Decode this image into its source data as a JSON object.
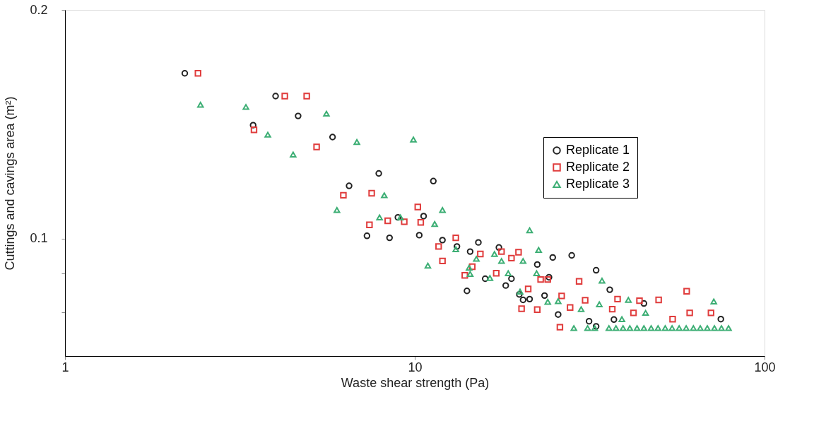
{
  "chart_data": {
    "type": "scatter",
    "xlabel": "Waste shear strength (Pa)",
    "ylabel": "Cuttings and cavings area (m²)",
    "log": "xy",
    "xlim": [
      1,
      100
    ],
    "xticks": [
      1,
      10,
      100
    ],
    "ylim": [
      0.07,
      0.2
    ],
    "yticks": [
      {
        "value": 0.08,
        "label": null
      },
      {
        "value": 0.09,
        "label": null
      },
      0.1,
      0.2
    ],
    "grid": false,
    "legend": "top right",
    "series": [
      {
        "name": "Replicate 1",
        "color": "#222222",
        "marker": "circle",
        "x": [
          2.2,
          4.0,
          3.45,
          4.64,
          5.82,
          7.89,
          6.49,
          11.3,
          7.3,
          8.47,
          8.95,
          10.6,
          10.3,
          12.0,
          13.2,
          14.4,
          15.2,
          14.1,
          17.4,
          15.9,
          18.2,
          18.9,
          19.9,
          21.3,
          20.4,
          22.4,
          24.8,
          28.1,
          24.2,
          33.0,
          36.1,
          23.5,
          45.2,
          75.0,
          25.7,
          37.1,
          33.0,
          31.5
        ],
        "values": [
          0.165,
          0.154,
          0.141,
          0.145,
          0.136,
          0.1218,
          0.1173,
          0.119,
          0.1008,
          0.1002,
          0.1066,
          0.107,
          0.101,
          0.0995,
          0.0976,
          0.0961,
          0.0988,
          0.0853,
          0.0973,
          0.0885,
          0.0867,
          0.0885,
          0.0844,
          0.0832,
          0.083,
          0.0924,
          0.0944,
          0.095,
          0.0889,
          0.0908,
          0.0856,
          0.0841,
          0.0821,
          0.0783,
          0.0794,
          0.0782,
          0.0766,
          0.0778
        ]
      },
      {
        "name": "Replicate 2",
        "color": "#e03c3c",
        "marker": "square",
        "x": [
          2.4,
          4.25,
          4.91,
          3.47,
          5.24,
          6.25,
          7.53,
          10.2,
          7.42,
          8.37,
          9.33,
          10.4,
          13.1,
          11.7,
          12.0,
          15.4,
          17.7,
          19.8,
          18.9,
          14.6,
          13.9,
          17.1,
          21.1,
          20.2,
          22.4,
          22.9,
          24.0,
          26.3,
          30.7,
          38.0,
          43.9,
          49.8,
          59.9,
          61.1,
          70.3,
          26.0,
          27.8,
          36.7,
          42.2,
          54.6,
          29.5
        ],
        "values": [
          0.165,
          0.154,
          0.154,
          0.139,
          0.132,
          0.114,
          0.1147,
          0.11,
          0.1042,
          0.1055,
          0.1052,
          0.105,
          0.1002,
          0.0976,
          0.0934,
          0.0954,
          0.0961,
          0.0959,
          0.0942,
          0.0918,
          0.0894,
          0.09,
          0.0858,
          0.0808,
          0.0806,
          0.0883,
          0.0883,
          0.084,
          0.0829,
          0.0832,
          0.0828,
          0.083,
          0.0852,
          0.0798,
          0.0798,
          0.0764,
          0.0811,
          0.0807,
          0.0798,
          0.0783,
          0.0878
        ]
      },
      {
        "name": "Replicate 3",
        "color": "#3cae74",
        "marker": "triangle",
        "x": [
          2.44,
          3.29,
          3.8,
          4.49,
          5.59,
          6.83,
          9.91,
          5.99,
          8.18,
          12.0,
          7.93,
          9.1,
          11.4,
          10.9,
          13.1,
          15.0,
          14.3,
          16.9,
          17.7,
          20.4,
          21.3,
          16.4,
          18.5,
          14.4,
          22.6,
          22.3,
          34.3,
          40.8,
          71.6,
          20.0,
          24.0,
          25.7,
          29.9,
          33.7,
          39.1,
          45.7,
          28.5,
          31.2,
          32.7,
          35.9,
          37.6,
          39.4,
          41.2,
          43.2,
          45.2,
          47.4,
          49.6,
          52.0,
          54.4,
          57.0,
          59.7,
          62.6,
          65.5,
          68.6,
          71.9,
          75.3,
          78.9
        ],
        "values": [
          0.15,
          0.149,
          0.137,
          0.129,
          0.146,
          0.134,
          0.135,
          0.109,
          0.114,
          0.109,
          0.1066,
          0.1066,
          0.1045,
          0.0921,
          0.0968,
          0.094,
          0.0915,
          0.0954,
          0.0934,
          0.0934,
          0.1025,
          0.0887,
          0.09,
          0.0898,
          0.0966,
          0.09,
          0.088,
          0.083,
          0.0826,
          0.0851,
          0.0825,
          0.0827,
          0.0807,
          0.0819,
          0.0783,
          0.0798,
          0.0762,
          0.0762,
          0.0762,
          0.0762,
          0.0762,
          0.0762,
          0.0762,
          0.0762,
          0.0762,
          0.0762,
          0.0762,
          0.0762,
          0.0762,
          0.0762,
          0.0762,
          0.0762,
          0.0762,
          0.0762,
          0.0762,
          0.0762,
          0.0762
        ]
      }
    ]
  }
}
